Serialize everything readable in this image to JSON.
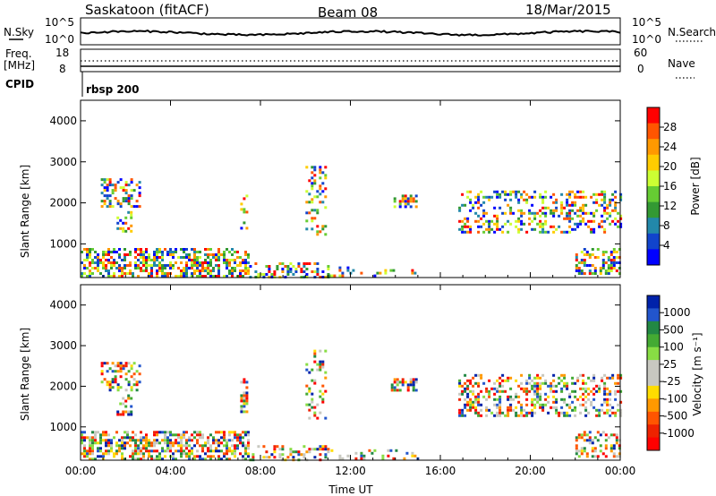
{
  "header": {
    "station": "Saskatoon (fitACF)",
    "beam": "Beam 08",
    "date": "18/Mar/2015"
  },
  "noise_panel": {
    "left_label": "N.Sky",
    "right_label": "N.Search",
    "left_ticks": [
      "10^5",
      "10^0"
    ],
    "right_ticks": [
      "10^5",
      "10^0"
    ]
  },
  "freq_panel": {
    "left_label_1": "Freq.",
    "left_label_2": "[MHz]",
    "right_label": "Nave",
    "left_ticks": [
      "18",
      "8"
    ],
    "right_ticks": [
      "60",
      "0"
    ]
  },
  "cpid": {
    "label": "CPID",
    "value": "rbsp 200"
  },
  "chart_data": [
    {
      "type": "heatmap",
      "name": "power",
      "ylabel": "Slant Range [km]",
      "colorbar_label": "Power [dB]",
      "colorbar_ticks": [
        "28",
        "24",
        "20",
        "16",
        "12",
        "8",
        "4"
      ],
      "colorbar_colors": [
        "#ff0000",
        "#ff5500",
        "#ff9900",
        "#ffcc00",
        "#ccff33",
        "#66cc33",
        "#339933",
        "#2288aa",
        "#1144cc",
        "#0000ff"
      ],
      "ylim": [
        180,
        4500
      ],
      "yticks": [
        1000,
        2000,
        3000,
        4000
      ],
      "xlim": [
        0,
        24
      ],
      "xticks": [
        "00:00",
        "04:00",
        "08:00",
        "12:00",
        "16:00",
        "20:00",
        "00:00"
      ]
    },
    {
      "type": "heatmap",
      "name": "velocity",
      "ylabel": "Slant Range [km]",
      "colorbar_label": "Velocity [m s⁻¹]",
      "colorbar_ticks": [
        "1000",
        "500",
        "100",
        "25",
        "-25",
        "-100",
        "-500",
        "-1000"
      ],
      "colorbar_colors": [
        "#0022aa",
        "#2255cc",
        "#228844",
        "#44aa33",
        "#88dd44",
        "#c8c8c0",
        "#c8c8c0",
        "#ffdd00",
        "#ff9900",
        "#ff5500",
        "#ee2200",
        "#ff0000"
      ],
      "ylim": [
        180,
        4500
      ],
      "yticks": [
        1000,
        2000,
        3000,
        4000
      ],
      "xlim": [
        0,
        24
      ],
      "xticks": [
        "00:00",
        "04:00",
        "08:00",
        "12:00",
        "16:00",
        "20:00",
        "00:00"
      ],
      "xlabel": "Time UT"
    }
  ]
}
